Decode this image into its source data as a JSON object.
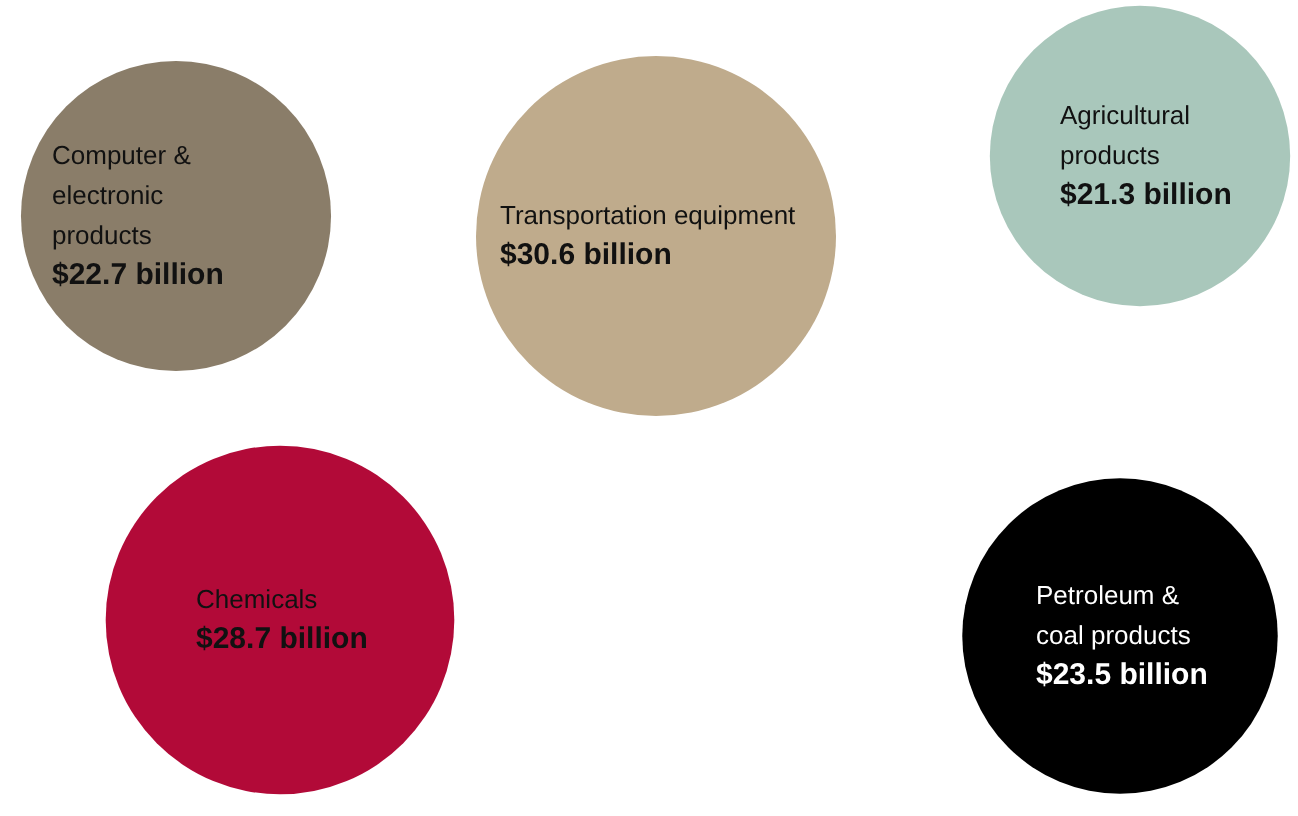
{
  "chart_data": {
    "type": "other",
    "categories": [
      "Computer & electronic products",
      "Transportation equipment",
      "Agricultural products",
      "Chemicals",
      "Petroleum & coal products"
    ],
    "values": [
      22.7,
      30.6,
      21.3,
      28.7,
      23.5
    ],
    "value_labels": [
      "$22.7 billion",
      "$30.6 billion",
      "$21.3 billion",
      "$28.7 billion",
      "$23.5 billion"
    ],
    "colors": [
      "#8a7d69",
      "#bfab8c",
      "#a9c7bb",
      "#b20a38",
      "#000000"
    ]
  }
}
